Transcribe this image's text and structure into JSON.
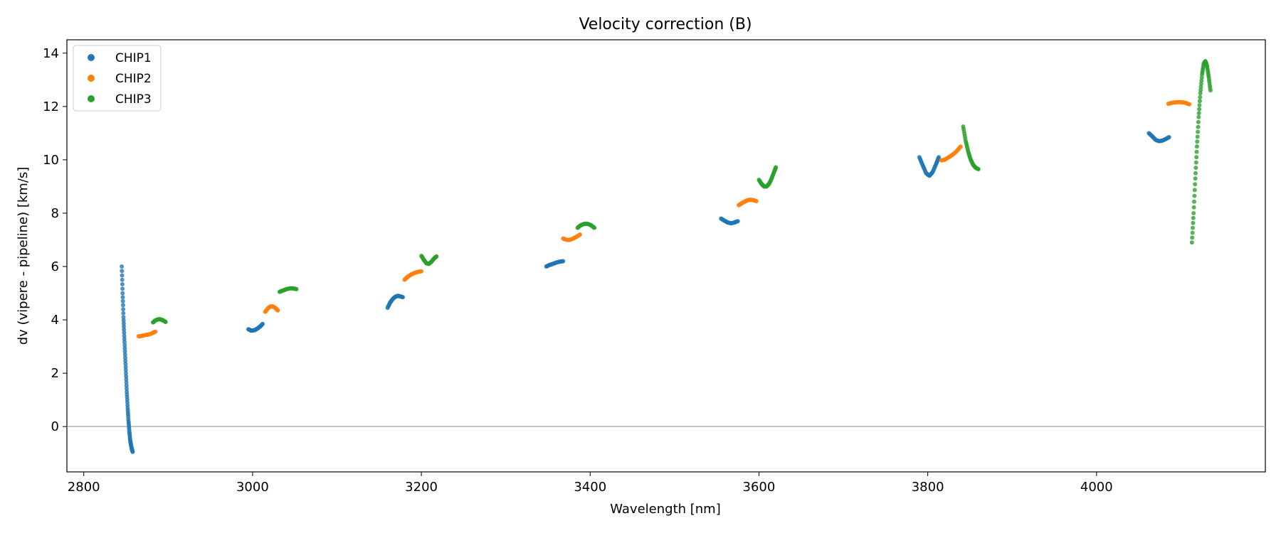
{
  "chart_data": {
    "type": "scatter",
    "title": "Velocity correction (B)",
    "xlabel": "Wavelength [nm]",
    "ylabel": "dv (vipere - pipeline) [km/s]",
    "xlim": [
      2780,
      4200
    ],
    "ylim": [
      -1.7,
      14.5
    ],
    "xticks": [
      2800,
      3000,
      3200,
      3400,
      3600,
      3800,
      4000
    ],
    "yticks": [
      0,
      2,
      4,
      6,
      8,
      10,
      12,
      14
    ],
    "grid": false,
    "reference_line_y": 0,
    "legend_position": "top-left",
    "series": [
      {
        "name": "CHIP1",
        "color": "#1f77b4",
        "segments": [
          {
            "x": [
              2845,
              2846,
              2847,
              2848,
              2849,
              2850,
              2851,
              2852,
              2853,
              2854,
              2855,
              2856,
              2857,
              2858
            ],
            "y": [
              6.0,
              5.0,
              4.1,
              3.4,
              2.7,
              2.0,
              1.3,
              0.7,
              0.2,
              -0.2,
              -0.5,
              -0.7,
              -0.85,
              -0.95
            ]
          },
          {
            "x": [
              2995,
              2998,
              3000,
              3003,
              3006,
              3009,
              3012
            ],
            "y": [
              3.65,
              3.6,
              3.6,
              3.62,
              3.68,
              3.75,
              3.85
            ]
          },
          {
            "x": [
              3160,
              3163,
              3166,
              3169,
              3172,
              3175,
              3178
            ],
            "y": [
              4.45,
              4.65,
              4.78,
              4.86,
              4.9,
              4.88,
              4.85
            ]
          },
          {
            "x": [
              3348,
              3352,
              3356,
              3360,
              3364,
              3368
            ],
            "y": [
              6.0,
              6.06,
              6.1,
              6.15,
              6.18,
              6.2
            ]
          },
          {
            "x": [
              3555,
              3559,
              3563,
              3567,
              3571,
              3575
            ],
            "y": [
              7.8,
              7.72,
              7.65,
              7.62,
              7.65,
              7.7
            ]
          },
          {
            "x": [
              3790,
              3794,
              3798,
              3802,
              3806,
              3810,
              3813
            ],
            "y": [
              10.1,
              9.8,
              9.5,
              9.4,
              9.55,
              9.85,
              10.1
            ]
          },
          {
            "x": [
              4062,
              4066,
              4070,
              4074,
              4078,
              4082,
              4086
            ],
            "y": [
              11.0,
              10.88,
              10.75,
              10.7,
              10.72,
              10.78,
              10.85
            ]
          }
        ]
      },
      {
        "name": "CHIP2",
        "color": "#ff7f0e",
        "segments": [
          {
            "x": [
              2865,
              2869,
              2873,
              2877,
              2881,
              2885
            ],
            "y": [
              3.38,
              3.4,
              3.43,
              3.45,
              3.5,
              3.56
            ]
          },
          {
            "x": [
              3015,
              3018,
              3021,
              3024,
              3027,
              3030
            ],
            "y": [
              4.3,
              4.42,
              4.5,
              4.5,
              4.45,
              4.35
            ]
          },
          {
            "x": [
              3180,
              3184,
              3188,
              3192,
              3196,
              3200
            ],
            "y": [
              5.5,
              5.62,
              5.7,
              5.76,
              5.8,
              5.82
            ]
          },
          {
            "x": [
              3368,
              3372,
              3376,
              3380,
              3384,
              3388
            ],
            "y": [
              7.05,
              7.0,
              7.0,
              7.05,
              7.12,
              7.2
            ]
          },
          {
            "x": [
              3576,
              3580,
              3584,
              3588,
              3592,
              3597
            ],
            "y": [
              8.3,
              8.38,
              8.45,
              8.5,
              8.5,
              8.45
            ]
          },
          {
            "x": [
              3816,
              3820,
              3825,
              3830,
              3835,
              3839
            ],
            "y": [
              9.98,
              10.0,
              10.1,
              10.2,
              10.35,
              10.5
            ]
          },
          {
            "x": [
              4085,
              4090,
              4095,
              4100,
              4105,
              4110
            ],
            "y": [
              12.1,
              12.14,
              12.16,
              12.16,
              12.14,
              12.08
            ]
          }
        ]
      },
      {
        "name": "CHIP3",
        "color": "#2ca02c",
        "segments": [
          {
            "x": [
              2882,
              2885,
              2888,
              2891,
              2894,
              2897
            ],
            "y": [
              3.9,
              3.98,
              4.02,
              4.02,
              3.98,
              3.92
            ]
          },
          {
            "x": [
              3032,
              3036,
              3040,
              3044,
              3048,
              3052
            ],
            "y": [
              5.05,
              5.1,
              5.15,
              5.18,
              5.18,
              5.15
            ]
          },
          {
            "x": [
              3200,
              3203,
              3206,
              3209,
              3212,
              3215,
              3218
            ],
            "y": [
              6.4,
              6.25,
              6.12,
              6.1,
              6.18,
              6.3,
              6.38
            ]
          },
          {
            "x": [
              3385,
              3389,
              3393,
              3397,
              3401,
              3405
            ],
            "y": [
              7.45,
              7.55,
              7.6,
              7.6,
              7.55,
              7.45
            ]
          },
          {
            "x": [
              3600,
              3603,
              3606,
              3609,
              3612,
              3615,
              3618,
              3620
            ],
            "y": [
              9.25,
              9.1,
              9.0,
              9.0,
              9.1,
              9.3,
              9.55,
              9.72
            ]
          },
          {
            "x": [
              3842,
              3845,
              3848,
              3851,
              3854,
              3857,
              3860
            ],
            "y": [
              11.25,
              10.7,
              10.3,
              10.0,
              9.8,
              9.7,
              9.65
            ]
          },
          {
            "x": [
              4113,
              4115,
              4117,
              4119,
              4121,
              4123,
              4125,
              4127,
              4129,
              4131,
              4133,
              4135
            ],
            "y": [
              6.9,
              8.0,
              9.3,
              10.5,
              11.6,
              12.5,
              13.2,
              13.6,
              13.7,
              13.5,
              13.1,
              12.6
            ]
          }
        ]
      }
    ]
  }
}
